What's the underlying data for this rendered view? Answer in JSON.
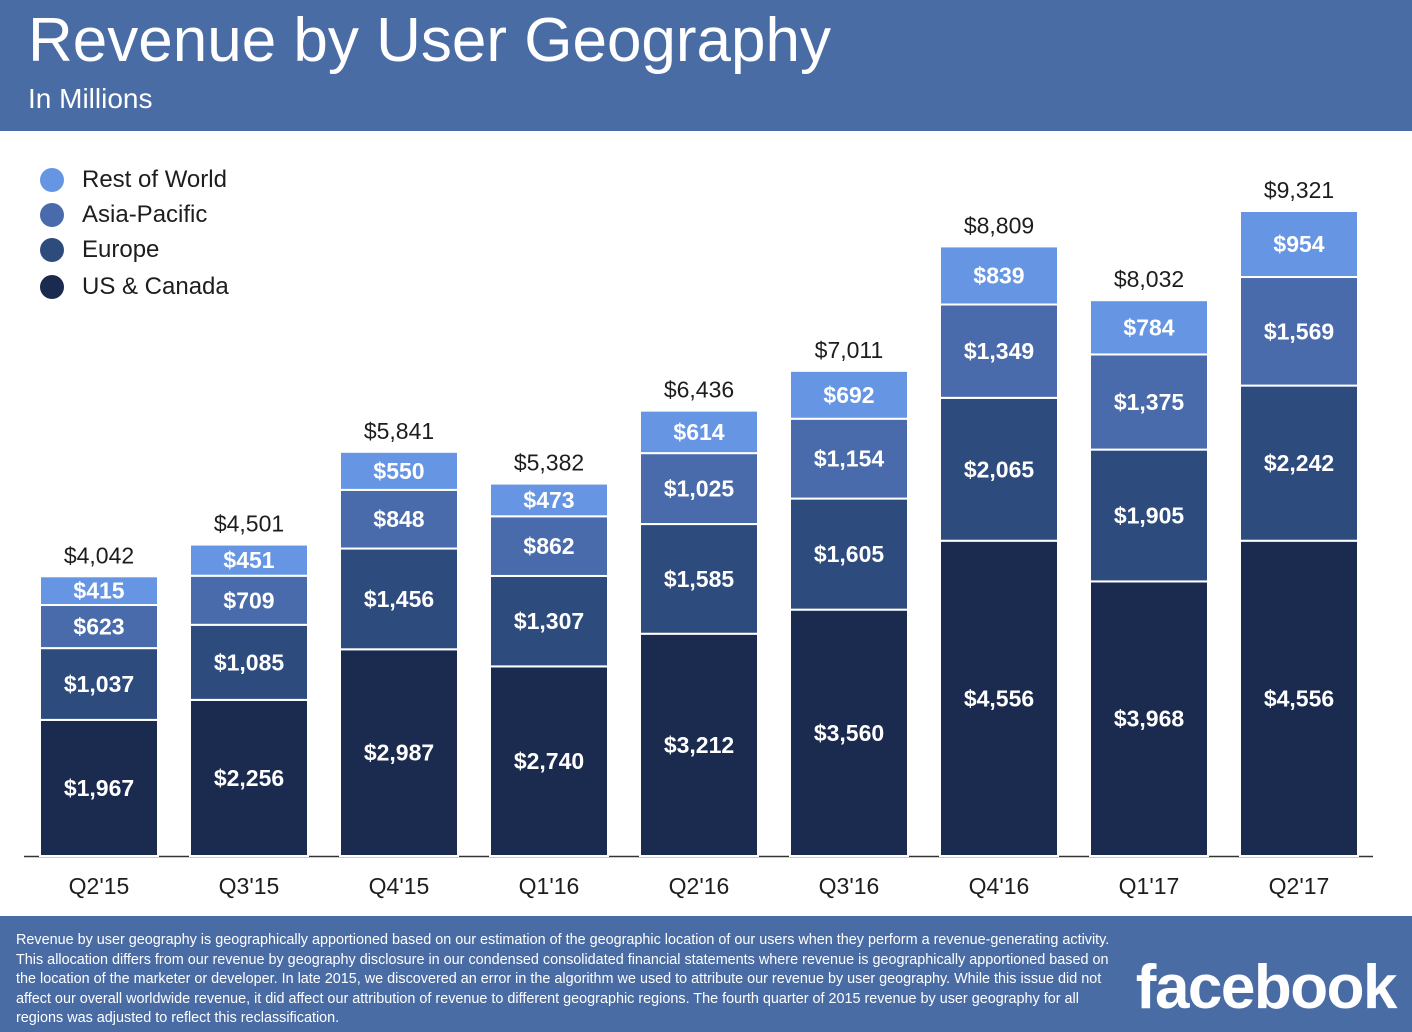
{
  "header": {
    "title": "Revenue by User Geography",
    "subtitle": "In Millions"
  },
  "chart_data": {
    "type": "bar",
    "stacked": true,
    "categories": [
      "Q2'15",
      "Q3'15",
      "Q4'15",
      "Q1'16",
      "Q2'16",
      "Q3'16",
      "Q4'16",
      "Q1'17",
      "Q2'17"
    ],
    "series": [
      {
        "name": "US & Canada",
        "color": "#1b2b4f",
        "values": [
          1967,
          2256,
          2987,
          2740,
          3212,
          3560,
          4556,
          3968,
          4556
        ],
        "labels": [
          "$1,967",
          "$2,256",
          "$2,987",
          "$2,740",
          "$3,212",
          "$3,560",
          "$4,556",
          "$3,968",
          "$4,556"
        ]
      },
      {
        "name": "Europe",
        "color": "#2e4b7e",
        "values": [
          1037,
          1085,
          1456,
          1307,
          1585,
          1605,
          2065,
          1905,
          2242
        ],
        "labels": [
          "$1,037",
          "$1,085",
          "$1,456",
          "$1,307",
          "$1,585",
          "$1,605",
          "$2,065",
          "$1,905",
          "$2,242"
        ]
      },
      {
        "name": "Asia-Pacific",
        "color": "#4a6bab",
        "values": [
          623,
          709,
          848,
          862,
          1025,
          1154,
          1349,
          1375,
          1569
        ],
        "labels": [
          "$623",
          "$709",
          "$848",
          "$862",
          "$1,025",
          "$1,154",
          "$1,349",
          "$1,375",
          "$1,569"
        ]
      },
      {
        "name": "Rest of World",
        "color": "#6595e3",
        "values": [
          415,
          451,
          550,
          473,
          614,
          692,
          839,
          784,
          954
        ],
        "labels": [
          "$415",
          "$451",
          "$550",
          "$473",
          "$614",
          "$692",
          "$839",
          "$784",
          "$954"
        ]
      }
    ],
    "totals": [
      4042,
      4501,
      5841,
      5382,
      6436,
      7011,
      8809,
      8032,
      9321
    ],
    "total_labels": [
      "$4,042",
      "$4,501",
      "$5,841",
      "$5,382",
      "$6,436",
      "$7,011",
      "$8,809",
      "$8,032",
      "$9,321"
    ],
    "ylim": [
      0,
      9321
    ],
    "grid": false,
    "legend_position": "top-left"
  },
  "footer": {
    "note": "Revenue by user geography is geographically apportioned based on our estimation of the geographic location of our users when they perform a revenue-generating activity. This allocation differs from our revenue by geography disclosure in our condensed consolidated financial statements where revenue is geographically apportioned based on the location of the marketer or developer. In late 2015, we discovered an error in the algorithm we used to attribute our revenue by user geography. While this issue did not affect our overall worldwide revenue, it did affect our attribution of revenue to different geographic regions. The fourth quarter of 2015 revenue by user geography for all regions was adjusted to reflect this reclassification.",
    "logo": "facebook"
  }
}
